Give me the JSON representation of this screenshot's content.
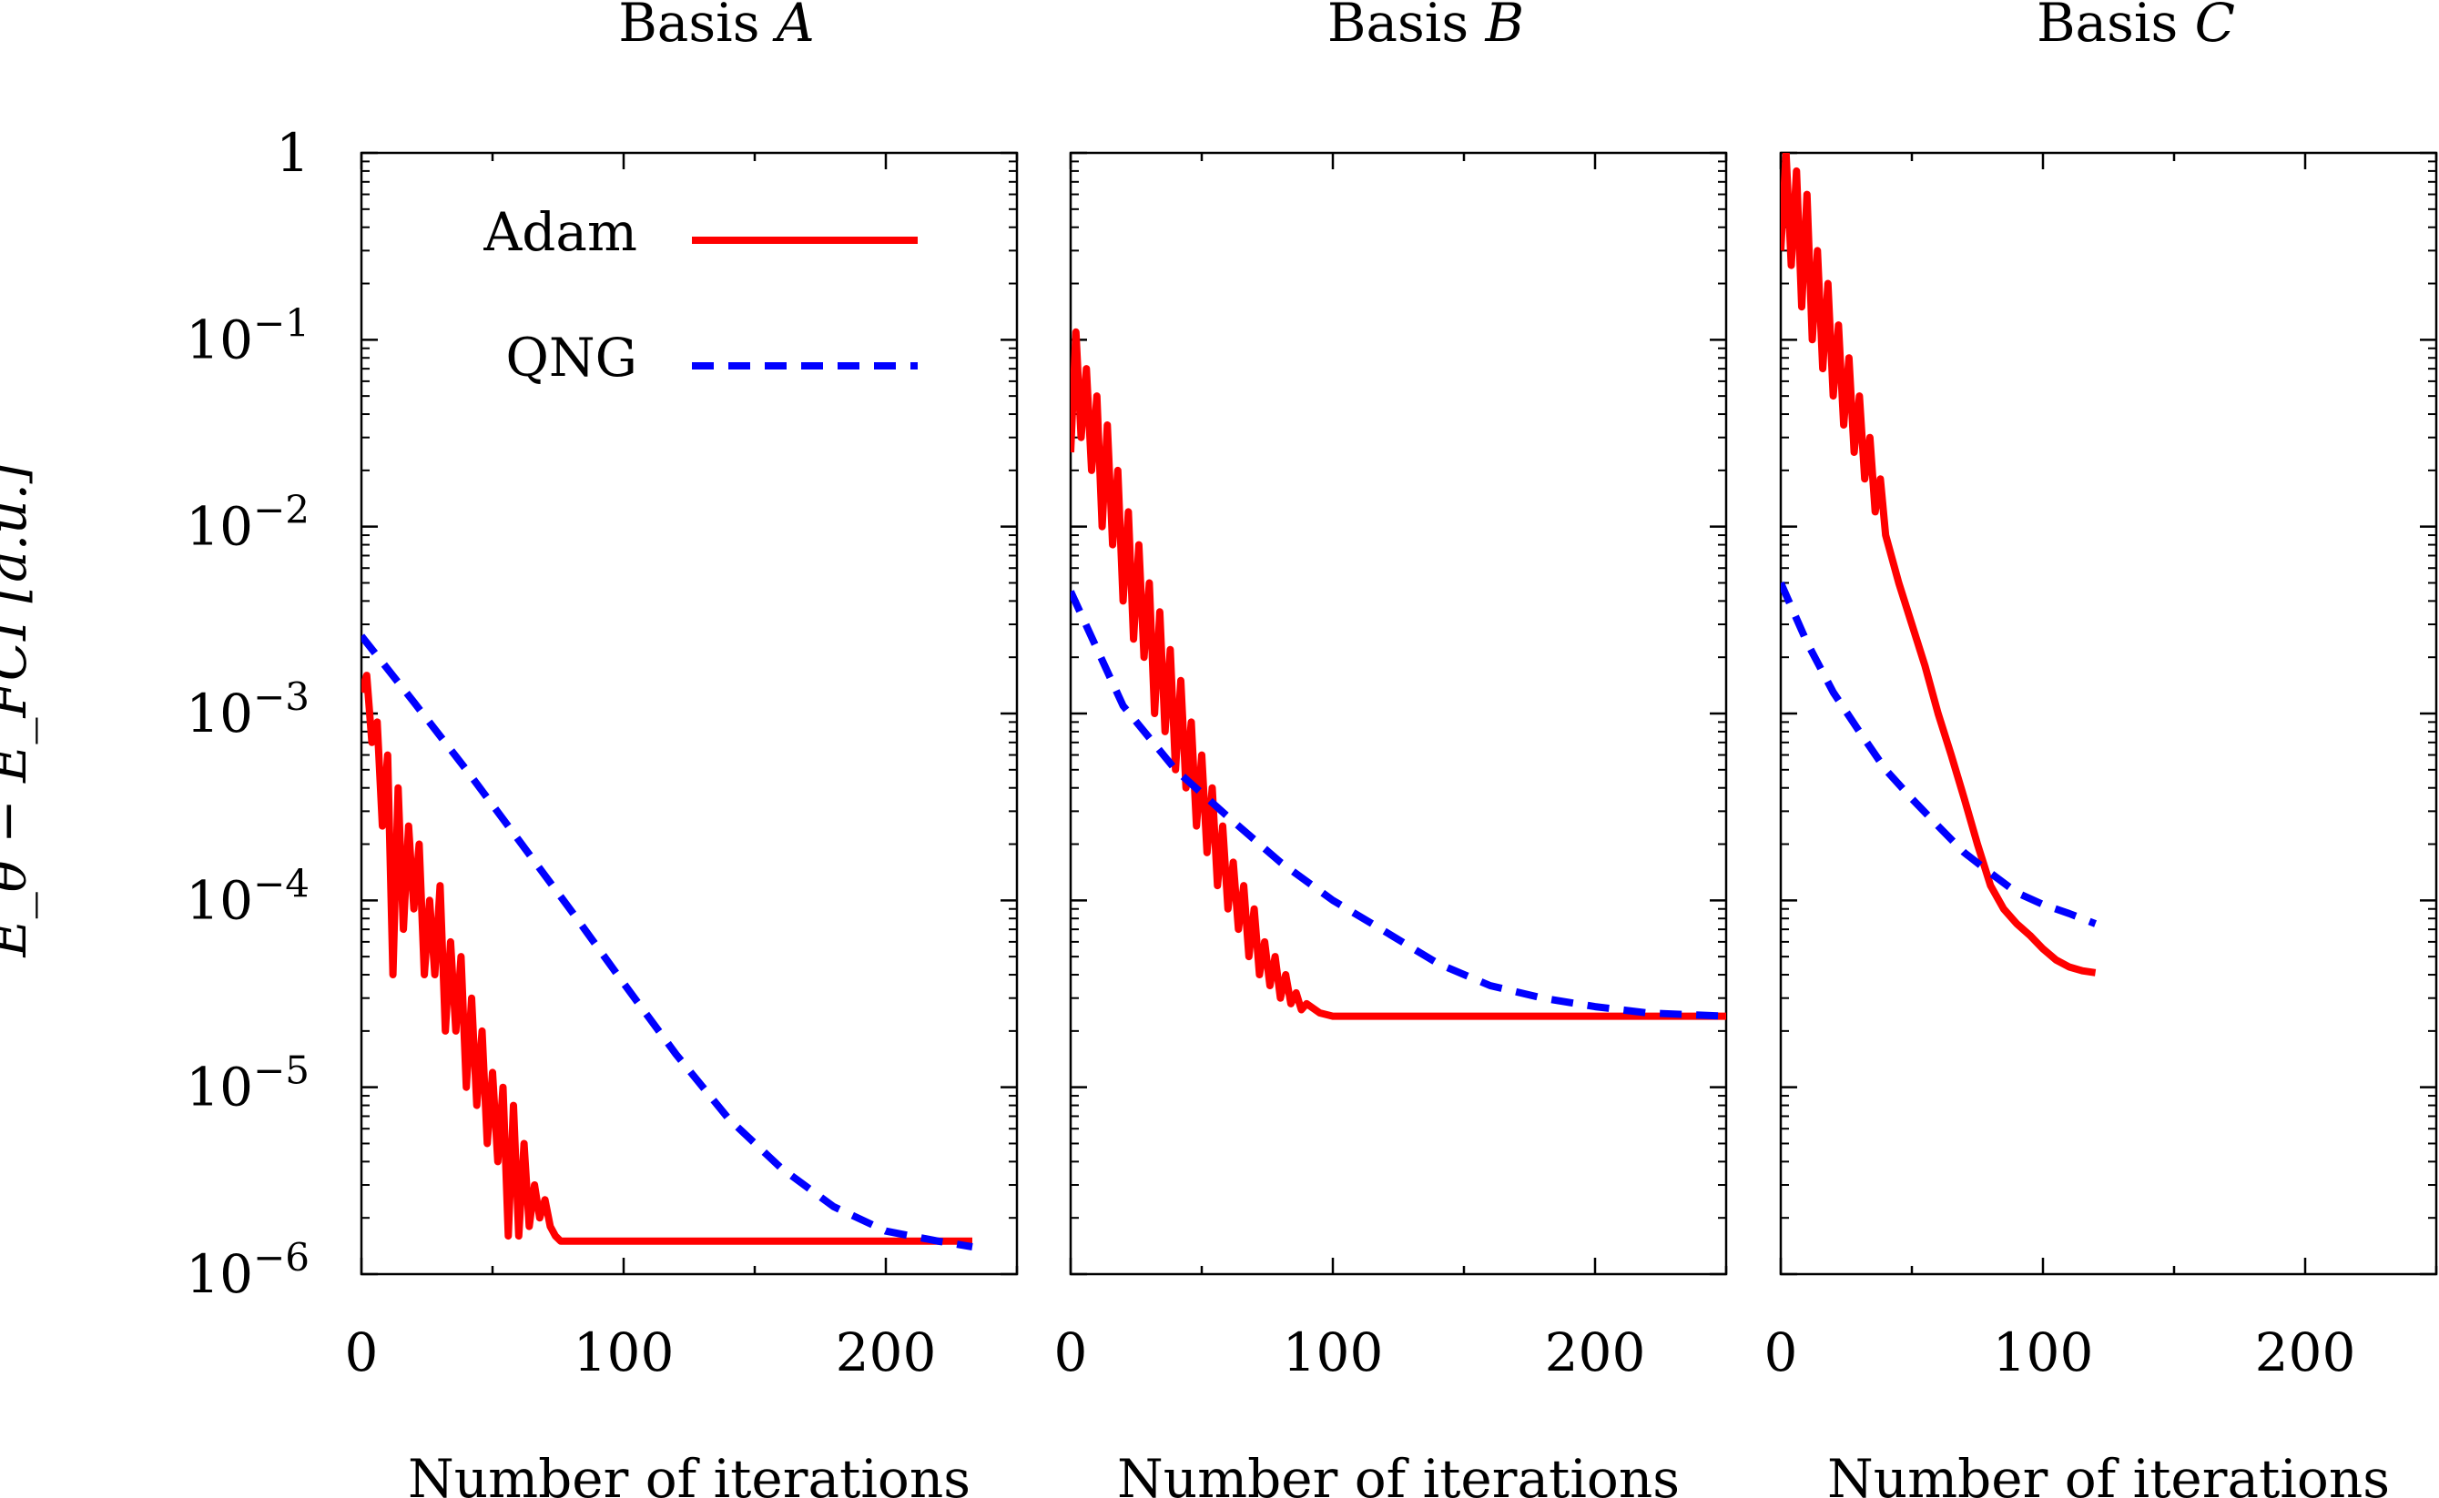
{
  "chart_data": {
    "type": "line",
    "ylabel": "E_θ − E_FCI [a.u.]",
    "yscale": "log",
    "ylim": [
      1e-06,
      1
    ],
    "ytick_labels": [
      {
        "value": 1,
        "base": "1",
        "exp": ""
      },
      {
        "value": 0.1,
        "base": "10",
        "exp": "−1"
      },
      {
        "value": 0.01,
        "base": "10",
        "exp": "−2"
      },
      {
        "value": 0.001,
        "base": "10",
        "exp": "−3"
      },
      {
        "value": 0.0001,
        "base": "10",
        "exp": "−4"
      },
      {
        "value": 1e-05,
        "base": "10",
        "exp": "−5"
      },
      {
        "value": 1e-06,
        "base": "10",
        "exp": "−6"
      }
    ],
    "legend": {
      "position": "top-right of first panel",
      "entries": [
        "Adam",
        "QNG"
      ]
    },
    "series_styles": {
      "Adam": {
        "color": "#ff0000",
        "dash": "solid"
      },
      "QNG": {
        "color": "#0000ff",
        "dash": "dashed"
      }
    },
    "panels": [
      {
        "title_prefix": "Basis ",
        "title_var": "A",
        "xlabel": "Number of iterations",
        "xlim": [
          0,
          250
        ],
        "xticks": [
          0,
          100,
          200
        ],
        "series": [
          {
            "name": "Adam",
            "x": [
              0,
              2,
              4,
              6,
              8,
              10,
              12,
              14,
              16,
              18,
              20,
              22,
              24,
              26,
              28,
              30,
              32,
              34,
              36,
              38,
              40,
              42,
              44,
              46,
              48,
              50,
              52,
              54,
              56,
              58,
              60,
              62,
              64,
              66,
              68,
              70,
              72,
              74,
              76,
              78,
              90,
              120,
              150,
              180,
              210,
              233
            ],
            "y": [
              0.0013,
              0.0016,
              0.0007,
              0.0009,
              0.00025,
              0.0006,
              4e-05,
              0.0004,
              7e-05,
              0.00025,
              9e-05,
              0.0002,
              4e-05,
              0.0001,
              4e-05,
              0.00012,
              2e-05,
              6e-05,
              2e-05,
              5e-05,
              1e-05,
              3e-05,
              8e-06,
              2e-05,
              5e-06,
              1.2e-05,
              4e-06,
              1e-05,
              1.6e-06,
              8e-06,
              1.6e-06,
              5e-06,
              1.8e-06,
              3e-06,
              2e-06,
              2.5e-06,
              1.8e-06,
              1.6e-06,
              1.5e-06,
              1.5e-06,
              1.5e-06,
              1.5e-06,
              1.5e-06,
              1.5e-06,
              1.5e-06,
              1.5e-06
            ]
          },
          {
            "name": "QNG",
            "x": [
              0,
              20,
              40,
              60,
              80,
              100,
              120,
              140,
              160,
              180,
              200,
              220,
              233
            ],
            "y": [
              0.0026,
              0.00115,
              0.0005,
              0.00021,
              8.8e-05,
              3.6e-05,
              1.5e-05,
              6.8e-06,
              3.7e-06,
              2.3e-06,
              1.7e-06,
              1.5e-06,
              1.4e-06
            ]
          }
        ]
      },
      {
        "title_prefix": "Basis ",
        "title_var": "B",
        "xlabel": "Number of iterations",
        "xlim": [
          0,
          250
        ],
        "xticks": [
          0,
          100,
          200
        ],
        "series": [
          {
            "name": "Adam",
            "x": [
              0,
              2,
              4,
              6,
              8,
              10,
              12,
              14,
              16,
              18,
              20,
              22,
              24,
              26,
              28,
              30,
              32,
              34,
              36,
              38,
              40,
              42,
              44,
              46,
              48,
              50,
              52,
              54,
              56,
              58,
              60,
              62,
              64,
              66,
              68,
              70,
              72,
              74,
              76,
              78,
              80,
              82,
              84,
              86,
              88,
              90,
              95,
              100,
              110,
              120,
              150,
              200,
              250
            ],
            "y": [
              0.025,
              0.11,
              0.03,
              0.07,
              0.02,
              0.05,
              0.01,
              0.035,
              0.008,
              0.02,
              0.004,
              0.012,
              0.0025,
              0.008,
              0.002,
              0.005,
              0.001,
              0.0035,
              0.0008,
              0.0022,
              0.0005,
              0.0015,
              0.0004,
              0.0009,
              0.00025,
              0.0006,
              0.00018,
              0.0004,
              0.00012,
              0.00025,
              9e-05,
              0.00016,
              7e-05,
              0.00012,
              5e-05,
              9e-05,
              4e-05,
              6e-05,
              3.5e-05,
              5e-05,
              3e-05,
              4e-05,
              2.8e-05,
              3.2e-05,
              2.6e-05,
              2.8e-05,
              2.5e-05,
              2.4e-05,
              2.4e-05,
              2.4e-05,
              2.4e-05,
              2.4e-05,
              2.4e-05
            ]
          },
          {
            "name": "QNG",
            "x": [
              0,
              20,
              40,
              60,
              80,
              100,
              120,
              140,
              160,
              180,
              200,
              220,
              250
            ],
            "y": [
              0.0045,
              0.0011,
              0.0005,
              0.00028,
              0.00016,
              0.0001,
              6.8e-05,
              4.6e-05,
              3.5e-05,
              3e-05,
              2.7e-05,
              2.5e-05,
              2.4e-05
            ]
          }
        ]
      },
      {
        "title_prefix": "Basis ",
        "title_var": "C",
        "xlabel": "Number of iterations",
        "xlim": [
          0,
          250
        ],
        "xticks": [
          0,
          100,
          200
        ],
        "series": [
          {
            "name": "Adam",
            "x": [
              0,
              2,
              4,
              6,
              8,
              10,
              12,
              14,
              16,
              18,
              20,
              22,
              24,
              26,
              28,
              30,
              32,
              34,
              36,
              38,
              40,
              45,
              50,
              55,
              60,
              65,
              70,
              75,
              80,
              85,
              90,
              95,
              100,
              105,
              110,
              115,
              120
            ],
            "y": [
              0.3,
              1.0,
              0.25,
              0.8,
              0.15,
              0.6,
              0.1,
              0.3,
              0.07,
              0.2,
              0.05,
              0.12,
              0.035,
              0.08,
              0.025,
              0.05,
              0.018,
              0.03,
              0.012,
              0.018,
              0.009,
              0.005,
              0.003,
              0.0018,
              0.001,
              0.0006,
              0.00035,
              0.0002,
              0.00012,
              9e-05,
              7.5e-05,
              6.5e-05,
              5.5e-05,
              4.8e-05,
              4.4e-05,
              4.2e-05,
              4.1e-05
            ]
          },
          {
            "name": "QNG",
            "x": [
              0,
              10,
              20,
              30,
              40,
              50,
              60,
              70,
              80,
              90,
              100,
              110,
              120
            ],
            "y": [
              0.005,
              0.0024,
              0.0013,
              0.0008,
              0.0005,
              0.00035,
              0.00025,
              0.00018,
              0.00014,
              0.00011,
              9.5e-05,
              8.5e-05,
              7.5e-05
            ]
          }
        ]
      }
    ]
  }
}
